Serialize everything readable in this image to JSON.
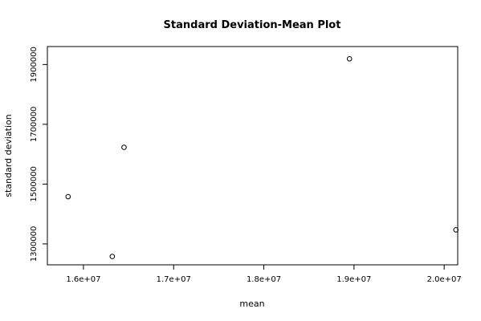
{
  "chart_data": {
    "type": "scatter",
    "title": "Standard Deviation-Mean Plot",
    "xlabel": "mean",
    "ylabel": "standard deviation",
    "xlim": [
      15600000,
      20150000
    ],
    "ylim": [
      1230000,
      1960000
    ],
    "x_ticks": [
      16000000,
      17000000,
      18000000,
      19000000,
      20000000
    ],
    "x_tick_labels": [
      "1.6e+07",
      "1.7e+07",
      "1.8e+07",
      "1.9e+07",
      "2.0e+07"
    ],
    "y_ticks": [
      1300000,
      1500000,
      1700000,
      1900000
    ],
    "y_tick_labels": [
      "1300000",
      "1500000",
      "1700000",
      "1900000"
    ],
    "grid": false,
    "marker": "open-circle",
    "points": [
      {
        "x": 15830000,
        "y": 1458000
      },
      {
        "x": 16320000,
        "y": 1258000
      },
      {
        "x": 16450000,
        "y": 1623000
      },
      {
        "x": 18950000,
        "y": 1919000
      },
      {
        "x": 20130000,
        "y": 1347000
      }
    ]
  }
}
